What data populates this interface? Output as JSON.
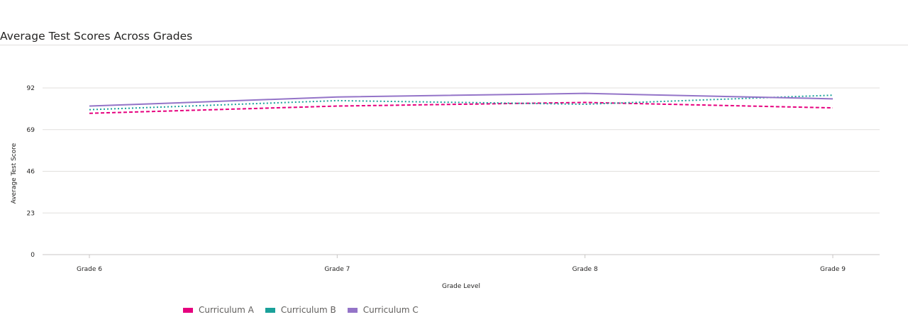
{
  "chart_data": {
    "type": "line",
    "title": "Average Test Scores Across Grades",
    "xlabel": "Grade Level",
    "ylabel": "Average Test Score",
    "categories": [
      "Grade 6",
      "Grade 7",
      "Grade 8",
      "Grade 9"
    ],
    "yticks": [
      0,
      23,
      46,
      69,
      92
    ],
    "ylim": [
      0,
      92
    ],
    "grid": true,
    "legend_position": "bottom-left",
    "series": [
      {
        "name": "Curriculum A",
        "values": [
          78,
          82,
          84,
          81
        ],
        "color": "#e6007e",
        "style": "dashed"
      },
      {
        "name": "Curriculum B",
        "values": [
          80,
          85,
          83,
          88
        ],
        "color": "#1aa19a",
        "style": "dotted"
      },
      {
        "name": "Curriculum C",
        "values": [
          82,
          87,
          89,
          86
        ],
        "color": "#9474c8",
        "style": "solid"
      }
    ]
  }
}
